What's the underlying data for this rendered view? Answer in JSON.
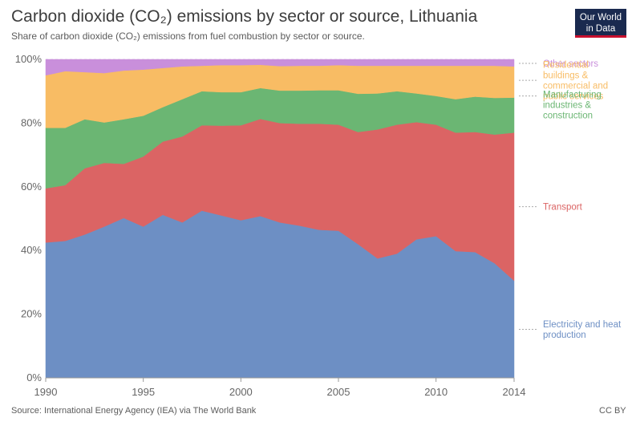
{
  "header": {
    "title": "Carbon dioxide (CO₂) emissions by sector or source, Lithuania",
    "subtitle": "Share of carbon dioxide (CO₂) emissions from fuel combustion by sector or source."
  },
  "logo": {
    "line1": "Our World",
    "line2": "in Data"
  },
  "footer": {
    "source": "Source: International Energy Agency (IEA) via The World Bank",
    "license": "CC BY"
  },
  "colors": {
    "electricity": "#6d8fc4",
    "transport": "#db6464",
    "manufacturing": "#6bb673",
    "residential": "#f8bc64",
    "other": "#c98fdb",
    "grid": "#dddddd"
  },
  "chart_data": {
    "type": "area",
    "stacked": true,
    "title": "Carbon dioxide (CO₂) emissions by sector or source, Lithuania",
    "ylabel": "",
    "xlabel": "",
    "xlim": [
      1990,
      2014
    ],
    "ylim": [
      0,
      100
    ],
    "x_ticks": [
      1990,
      1995,
      2000,
      2005,
      2010,
      2014
    ],
    "y_ticks": [
      0,
      20,
      40,
      60,
      80,
      100
    ],
    "y_tick_labels": [
      "0%",
      "20%",
      "40%",
      "60%",
      "80%",
      "100%"
    ],
    "x": [
      1990,
      1991,
      1992,
      1993,
      1994,
      1995,
      1996,
      1997,
      1998,
      1999,
      2000,
      2001,
      2002,
      2003,
      2004,
      2005,
      2006,
      2007,
      2008,
      2009,
      2010,
      2011,
      2012,
      2013,
      2014
    ],
    "series": [
      {
        "name": "Electricity and heat production",
        "key": "electricity",
        "values": [
          42.5,
          43,
          45,
          47.5,
          50.2,
          47.5,
          51.2,
          48.8,
          52.5,
          51,
          49.5,
          50.8,
          48.8,
          47.8,
          46.5,
          46.2,
          42,
          37.5,
          39,
          43.5,
          44.5,
          39.8,
          39.5,
          36,
          30.5
        ]
      },
      {
        "name": "Transport",
        "key": "transport",
        "values": [
          17,
          17.5,
          20.8,
          20,
          17,
          22,
          23,
          27,
          26.8,
          28.2,
          29.8,
          30.5,
          31.2,
          32,
          33.3,
          33.3,
          35.2,
          40.5,
          40.5,
          36.8,
          35,
          37.2,
          37.7,
          40.4,
          46.5
        ]
      },
      {
        "name": "Manufacturing industries & construction",
        "key": "manufacturing",
        "values": [
          19,
          18,
          15.4,
          12.7,
          14,
          12.8,
          10.8,
          11.7,
          10.7,
          10.5,
          10.4,
          9.7,
          10.2,
          10.4,
          10.5,
          10.8,
          12,
          11.3,
          10.5,
          9,
          9,
          10.5,
          11.1,
          11.5,
          11
        ]
      },
      {
        "name": "Residential buildings & commercial and public services",
        "key": "residential",
        "values": [
          16.5,
          17.8,
          14.8,
          15.5,
          15.3,
          14.5,
          12.3,
          10.3,
          8,
          8.5,
          8.5,
          7.3,
          7.7,
          7.8,
          7.7,
          7.9,
          8.8,
          8.7,
          8,
          8.7,
          9.5,
          10.5,
          9.7,
          10.1,
          9.8
        ]
      },
      {
        "name": "Other sectors",
        "key": "other",
        "values": [
          5,
          3.7,
          4,
          4.3,
          3.5,
          3.2,
          2.7,
          2.2,
          2,
          1.8,
          1.8,
          1.7,
          2.1,
          2,
          2,
          1.8,
          2,
          2,
          2,
          2,
          2,
          2,
          2,
          2,
          2.2
        ]
      }
    ],
    "legend": [
      {
        "label_lines": [
          "Other sectors"
        ],
        "key": "other"
      },
      {
        "label_lines": [
          "Residential",
          "buildings &",
          "commercial and",
          "public services"
        ],
        "key": "residential"
      },
      {
        "label_lines": [
          "Manufacturing",
          "industries &",
          "construction"
        ],
        "key": "manufacturing"
      },
      {
        "label_lines": [
          "Transport"
        ],
        "key": "transport"
      },
      {
        "label_lines": [
          "Electricity and heat",
          "production"
        ],
        "key": "electricity"
      }
    ],
    "legend_placement": "right"
  }
}
